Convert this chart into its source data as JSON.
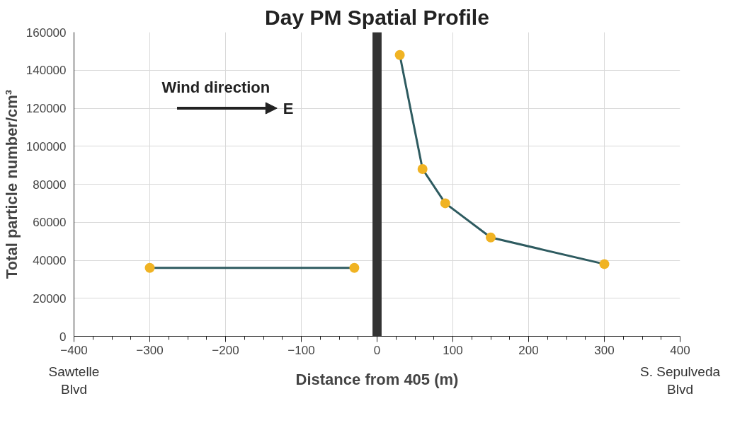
{
  "chart_data": {
    "type": "line",
    "title": "Day PM Spatial Profile",
    "xlabel": "Distance from 405 (m)",
    "ylabel": "Total particle number/cm³",
    "series": [
      {
        "color": "#2e5b60",
        "colors": [
          "#f0b323",
          "#f0b323"
        ],
        "x": [
          -300,
          -30
        ],
        "values": [
          36000,
          36000
        ]
      },
      {
        "color": "#2e5b60",
        "colors": [
          "#f0b323",
          "#f0b323",
          "#f0b323",
          "#f0b323",
          "#f0b323"
        ],
        "x": [
          30,
          60,
          90,
          150,
          300
        ],
        "values": [
          148000,
          88000,
          70000,
          52000,
          38000
        ]
      }
    ],
    "xlim": [
      -400,
      400
    ],
    "xticks": [
      -400,
      -300,
      -200,
      -100,
      0,
      100,
      200,
      300,
      400
    ],
    "ylim": [
      0,
      160000
    ],
    "yticks": [
      0,
      20000,
      40000,
      60000,
      80000,
      100000,
      120000,
      140000,
      160000
    ],
    "bands": [
      {
        "axis": "x",
        "from": -6,
        "to": 6,
        "color": "#333333"
      }
    ],
    "annotations": [
      "Wind direction",
      "E",
      "Sawtelle\nBlvd",
      "S. Sepulveda\nBlvd"
    ],
    "grid": true,
    "marker": "circle",
    "line_style": "solid"
  }
}
